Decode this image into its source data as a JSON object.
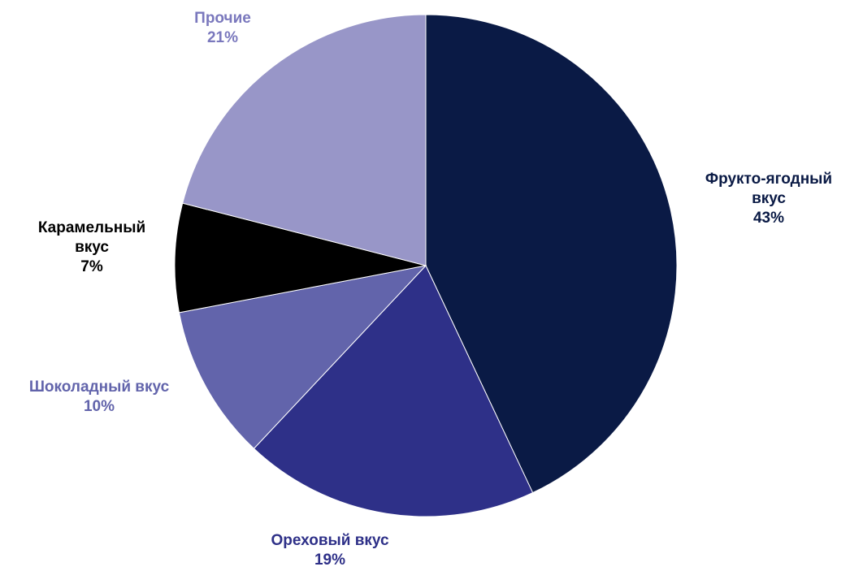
{
  "chart_data": {
    "type": "pie",
    "title": "",
    "slices": [
      {
        "name_lines": [
          "Фрукто-ягодный",
          "вкус"
        ],
        "value": 43,
        "value_label": "43%",
        "color": "#0a1a45",
        "label_color": "#0a1a45"
      },
      {
        "name_lines": [
          "Ореховый вкус"
        ],
        "value": 19,
        "value_label": "19%",
        "color": "#2e3088",
        "label_color": "#2e3088"
      },
      {
        "name_lines": [
          "Шоколадный вкус"
        ],
        "value": 10,
        "value_label": "10%",
        "color": "#6264ab",
        "label_color": "#6264ab"
      },
      {
        "name_lines": [
          "Карамельный",
          "вкус"
        ],
        "value": 7,
        "value_label": "7%",
        "color": "#000000",
        "label_color": "#000000"
      },
      {
        "name_lines": [
          "Прочие"
        ],
        "value": 21,
        "value_label": "21%",
        "color": "#9896c8",
        "label_color": "#7a78bd"
      }
    ],
    "start_angle": "12 o'clock",
    "direction": "clockwise",
    "legend": "none",
    "labels": "outside"
  }
}
